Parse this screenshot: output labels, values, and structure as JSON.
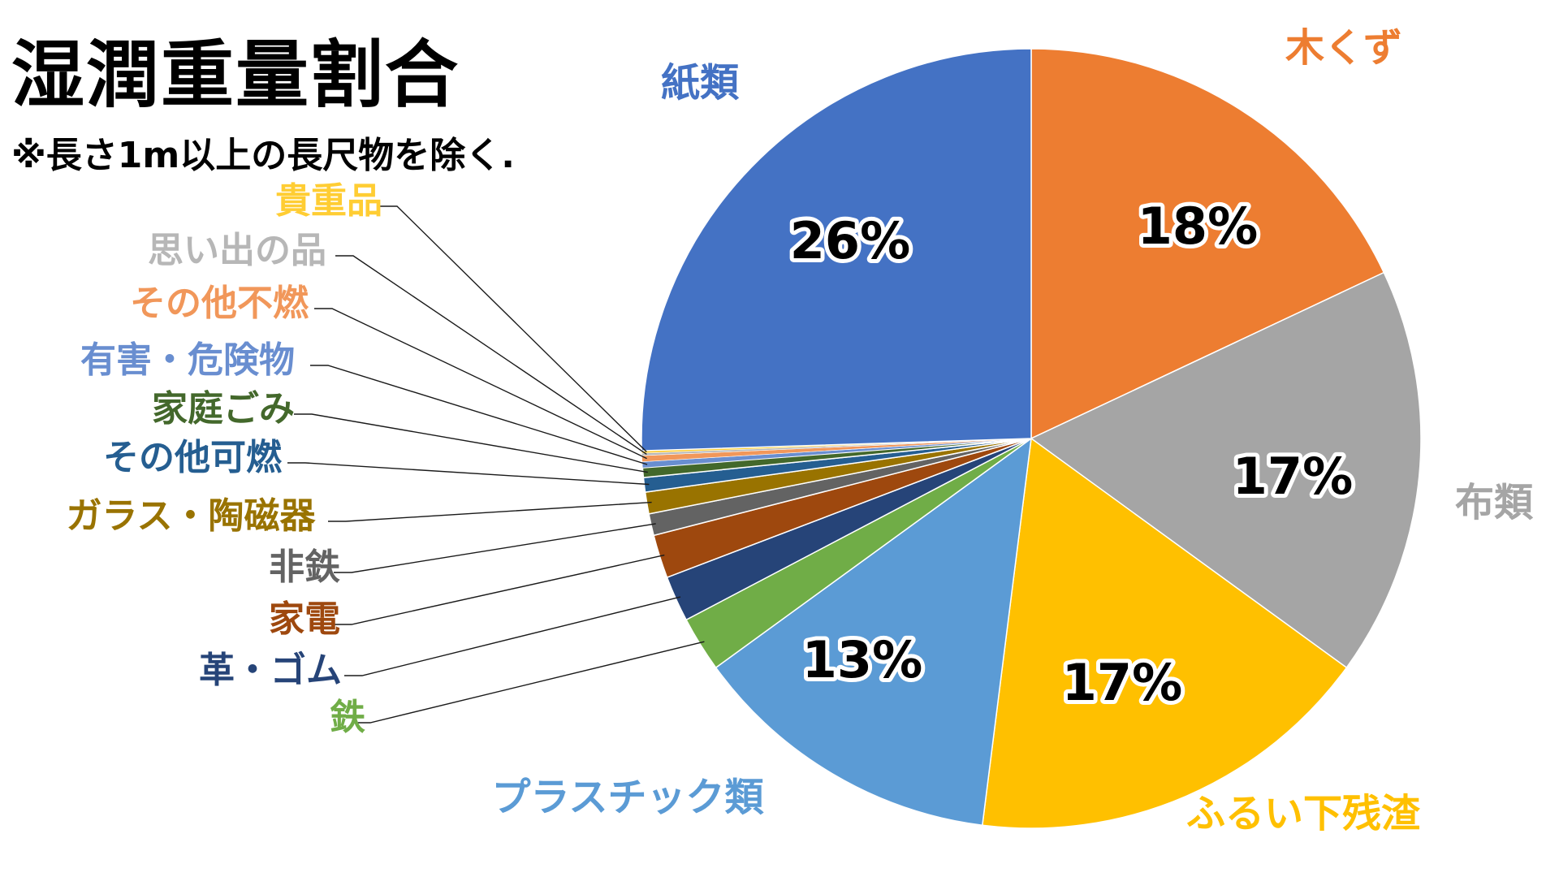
{
  "title": "湿潤重量割合",
  "subtitle": "※長さ1m以上の長尺物を除く.",
  "chart_data": {
    "type": "pie",
    "start_angle_deg": 90,
    "direction": "clockwise",
    "slices": [
      {
        "label": "木くず",
        "value": 18,
        "pct_label": "18%",
        "color": "#ED7D31",
        "label_color": "#ED7D31"
      },
      {
        "label": "布類",
        "value": 17,
        "pct_label": "17%",
        "color": "#A5A5A5",
        "label_color": "#A5A5A5"
      },
      {
        "label": "ふるい下残渣",
        "value": 17,
        "pct_label": "17%",
        "color": "#FFC000",
        "label_color": "#FFC000"
      },
      {
        "label": "プラスチック類",
        "value": 13,
        "pct_label": "13%",
        "color": "#5B9BD5",
        "label_color": "#5B9BD5"
      },
      {
        "label": "鉄",
        "value": 2.3,
        "pct_label": "",
        "color": "#70AD47",
        "label_color": "#70AD47"
      },
      {
        "label": "革・ゴム",
        "value": 1.9,
        "pct_label": "",
        "color": "#264478",
        "label_color": "#264478"
      },
      {
        "label": "家電",
        "value": 1.8,
        "pct_label": "",
        "color": "#9E480E",
        "label_color": "#9E480E"
      },
      {
        "label": "非鉄",
        "value": 0.9,
        "pct_label": "",
        "color": "#636363",
        "label_color": "#636363"
      },
      {
        "label": "ガラス・陶磁器",
        "value": 0.9,
        "pct_label": "",
        "color": "#997300",
        "label_color": "#997300"
      },
      {
        "label": "その他可燃",
        "value": 0.6,
        "pct_label": "",
        "color": "#255E91",
        "label_color": "#255E91"
      },
      {
        "label": "家庭ごみ",
        "value": 0.4,
        "pct_label": "",
        "color": "#43682B",
        "label_color": "#43682B"
      },
      {
        "label": "有害・危険物",
        "value": 0.25,
        "pct_label": "",
        "color": "#698ED0",
        "label_color": "#698ED0"
      },
      {
        "label": "その他不燃",
        "value": 0.25,
        "pct_label": "",
        "color": "#F1975A",
        "label_color": "#F1975A"
      },
      {
        "label": "思い出の品",
        "value": 0.1,
        "pct_label": "",
        "color": "#B7B7B7",
        "label_color": "#B7B7B7"
      },
      {
        "label": "貴重品",
        "value": 0.1,
        "pct_label": "",
        "color": "#FFCD33",
        "label_color": "#FFCD33"
      },
      {
        "label": "紙類",
        "value": 25.5,
        "pct_label": "26%",
        "color": "#4472C4",
        "label_color": "#4472C4"
      }
    ]
  }
}
